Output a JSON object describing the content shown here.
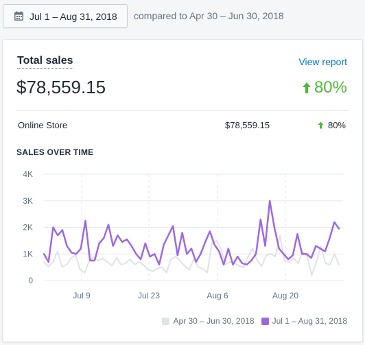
{
  "header": {
    "date_range": "Jul 1 – Aug 31, 2018",
    "compare_text": "compared to Apr 30 – Jun 30, 2018",
    "calendar_icon": "calendar-icon"
  },
  "card": {
    "title": "Total sales",
    "view_report": "View report",
    "total": "$78,559.15",
    "change_pct": "80%",
    "arrow_icon": "arrow-up-icon",
    "breakdown": [
      {
        "label": "Online Store",
        "value": "$78,559.15",
        "pct": "80%"
      }
    ],
    "section_label": "SALES OVER TIME"
  },
  "colors": {
    "current": "#9c6ade",
    "previous": "#dfe3e8",
    "positive": "#50b83c",
    "link": "#007ace"
  },
  "chart_data": {
    "type": "line",
    "x_labels": [
      "Jul 9",
      "Jul 23",
      "Aug 6",
      "Aug 20"
    ],
    "y_tick_labels": [
      "0",
      "1K",
      "2K",
      "3K",
      "4K"
    ],
    "ylim": [
      0,
      4000
    ],
    "series": [
      {
        "name": "Apr 30 – Jun 30, 2018",
        "values": [
          700,
          520,
          700,
          1100,
          520,
          600,
          850,
          950,
          400,
          300,
          750,
          880,
          750,
          820,
          700,
          550,
          850,
          600,
          650,
          800,
          600,
          700,
          580,
          400,
          350,
          450,
          500,
          300,
          800,
          900,
          750,
          550,
          400,
          800,
          500,
          450,
          300,
          1400,
          1500,
          1200,
          600,
          700,
          650,
          550,
          500,
          900,
          1200,
          750,
          550,
          950,
          1000,
          900,
          1700,
          750,
          700,
          850,
          650,
          1100,
          900,
          200,
          700,
          1300,
          650,
          600,
          1000,
          600
        ]
      },
      {
        "name": "Jul 1 – Aug 31, 2018",
        "values": [
          1000,
          700,
          2000,
          1700,
          1900,
          1300,
          1050,
          1000,
          1200,
          2250,
          750,
          750,
          1400,
          1600,
          2100,
          1300,
          1700,
          1450,
          1550,
          1300,
          1000,
          800,
          1400,
          900,
          1000,
          600,
          1350,
          1700,
          2050,
          950,
          1800,
          1000,
          1200,
          700,
          1000,
          1450,
          1850,
          1350,
          1100,
          600,
          1200,
          600,
          900,
          650,
          600,
          750,
          1000,
          2300,
          1300,
          3000,
          2000,
          1200,
          1000,
          800,
          950,
          1750,
          1000,
          1000,
          850,
          1300,
          1200,
          1100,
          1600,
          2200,
          1950
        ]
      }
    ]
  }
}
